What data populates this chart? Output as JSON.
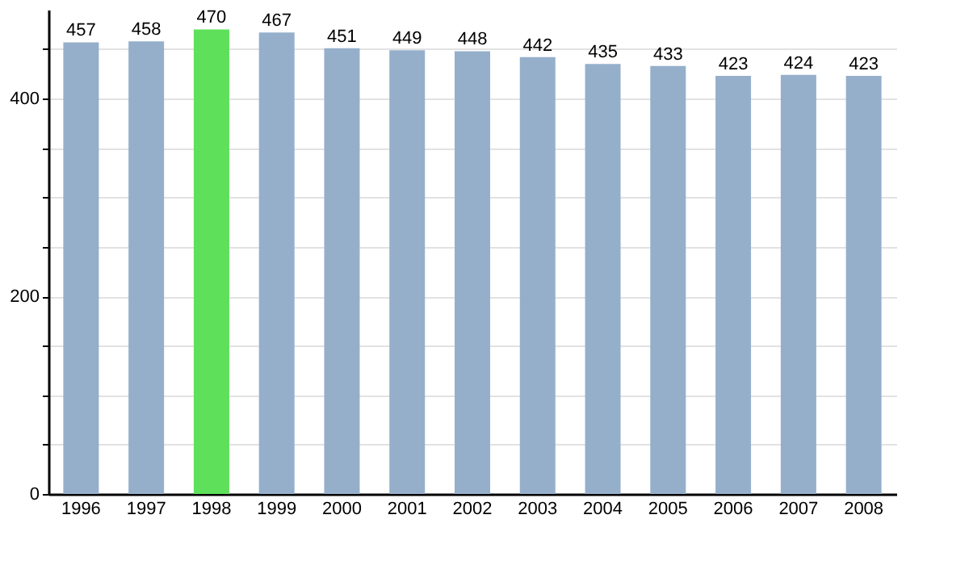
{
  "chart_data": {
    "type": "bar",
    "categories": [
      "1996",
      "1997",
      "1998",
      "1999",
      "2000",
      "2001",
      "2002",
      "2003",
      "2004",
      "2005",
      "2006",
      "2007",
      "2008"
    ],
    "values": [
      457,
      458,
      470,
      467,
      451,
      449,
      448,
      442,
      435,
      433,
      423,
      424,
      423
    ],
    "colors": [
      "#95afcb",
      "#95afcb",
      "#5ee05a",
      "#95afcb",
      "#95afcb",
      "#95afcb",
      "#95afcb",
      "#95afcb",
      "#95afcb",
      "#95afcb",
      "#95afcb",
      "#95afcb",
      "#95afcb"
    ],
    "data_labels": true,
    "ylim": [
      0,
      490
    ],
    "yticks": [
      0,
      {
        "value": 50,
        "label": null
      },
      {
        "value": 100,
        "label": null
      },
      {
        "value": 150,
        "label": null
      },
      200,
      {
        "value": 250,
        "label": null
      },
      {
        "value": 300,
        "label": null
      },
      {
        "value": 350,
        "label": null
      },
      400,
      {
        "value": 450,
        "label": null
      }
    ],
    "grid": "y"
  }
}
